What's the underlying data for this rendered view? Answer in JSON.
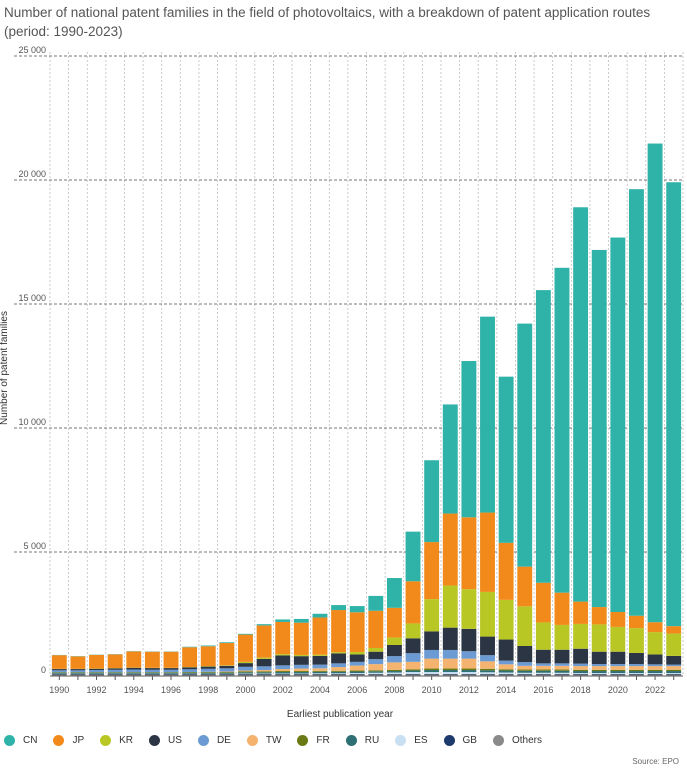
{
  "title_lines": [
    "Number of national patent families in the field of photovoltaics, with a breakdown of patent application routes",
    "(period: 1990-2023)"
  ],
  "source": "Source: EPO",
  "chart_data": {
    "type": "bar",
    "stacked": true,
    "title": "Number of national patent families in the field of photovoltaics, with a breakdown of patent application routes (period: 1990-2023)",
    "xlabel": "Earliest publication year",
    "ylabel": "Number of patent families",
    "ylim": [
      0,
      25000
    ],
    "yticks": [
      0,
      5000,
      10000,
      15000,
      20000,
      25000
    ],
    "ytick_labels": [
      "0",
      "5 000",
      "10 000",
      "15 000",
      "20 000",
      "25 000"
    ],
    "categories": [
      "1990",
      "1991",
      "1992",
      "1993",
      "1994",
      "1995",
      "1996",
      "1997",
      "1998",
      "1999",
      "2000",
      "2001",
      "2002",
      "2003",
      "2004",
      "2005",
      "2006",
      "2007",
      "2008",
      "2009",
      "2010",
      "2011",
      "2012",
      "2013",
      "2014",
      "2015",
      "2016",
      "2017",
      "2018",
      "2019",
      "2020",
      "2021",
      "2022",
      "2023"
    ],
    "xtick_labels": [
      "1990",
      "1992",
      "1994",
      "1996",
      "1998",
      "2000",
      "2002",
      "2004",
      "2006",
      "2008",
      "2010",
      "2012",
      "2014",
      "2016",
      "2018",
      "2020",
      "2022"
    ],
    "stack_order": [
      "Others",
      "GB",
      "ES",
      "RU",
      "FR",
      "TW",
      "DE",
      "US",
      "KR",
      "JP",
      "CN"
    ],
    "series": [
      {
        "name": "CN",
        "color": "#2fb3a8",
        "values": [
          10,
          10,
          10,
          10,
          10,
          10,
          10,
          20,
          30,
          30,
          30,
          50,
          100,
          150,
          150,
          200,
          250,
          600,
          1200,
          2000,
          3300,
          4400,
          6300,
          7900,
          6700,
          9800,
          11800,
          13100,
          15900,
          14400,
          15100,
          17200,
          19300,
          17900
        ]
      },
      {
        "name": "JP",
        "color": "#f28a1b",
        "values": [
          550,
          500,
          550,
          550,
          650,
          650,
          650,
          800,
          800,
          900,
          1100,
          1300,
          1300,
          1300,
          1500,
          1700,
          1600,
          1500,
          1200,
          1700,
          2300,
          2900,
          2900,
          3200,
          2300,
          1600,
          1600,
          1300,
          900,
          700,
          600,
          500,
          400,
          300
        ]
      },
      {
        "name": "KR",
        "color": "#b9c725",
        "values": [
          10,
          10,
          10,
          10,
          10,
          10,
          10,
          10,
          20,
          20,
          50,
          50,
          50,
          50,
          50,
          50,
          100,
          150,
          300,
          600,
          1300,
          1700,
          1600,
          1800,
          1600,
          1600,
          1100,
          1000,
          1000,
          1100,
          1000,
          1000,
          900,
          900
        ]
      },
      {
        "name": "US",
        "color": "#2b3544",
        "values": [
          50,
          50,
          50,
          60,
          70,
          70,
          70,
          80,
          90,
          100,
          150,
          300,
          400,
          350,
          350,
          400,
          300,
          300,
          450,
          600,
          750,
          900,
          900,
          750,
          850,
          650,
          550,
          550,
          600,
          500,
          500,
          450,
          400,
          350
        ]
      },
      {
        "name": "DE",
        "color": "#6b9bd2",
        "values": [
          80,
          80,
          90,
          100,
          110,
          100,
          100,
          110,
          120,
          130,
          150,
          150,
          150,
          150,
          150,
          150,
          150,
          200,
          250,
          350,
          350,
          350,
          300,
          250,
          150,
          150,
          100,
          100,
          100,
          80,
          80,
          80,
          70,
          60
        ]
      },
      {
        "name": "TW",
        "color": "#f4b36f",
        "values": [
          0,
          0,
          0,
          0,
          0,
          0,
          0,
          0,
          10,
          20,
          30,
          50,
          80,
          100,
          100,
          150,
          200,
          250,
          300,
          300,
          400,
          400,
          400,
          300,
          200,
          150,
          150,
          150,
          150,
          150,
          150,
          150,
          150,
          150
        ]
      },
      {
        "name": "FR",
        "color": "#6b7a14",
        "values": [
          30,
          30,
          30,
          30,
          30,
          30,
          30,
          30,
          30,
          30,
          40,
          40,
          40,
          40,
          40,
          40,
          40,
          40,
          50,
          50,
          60,
          60,
          60,
          60,
          50,
          50,
          50,
          50,
          50,
          50,
          50,
          50,
          50,
          50
        ]
      },
      {
        "name": "RU",
        "color": "#2e6f73",
        "values": [
          30,
          30,
          30,
          30,
          30,
          30,
          30,
          40,
          40,
          40,
          50,
          50,
          60,
          60,
          60,
          60,
          60,
          60,
          60,
          60,
          80,
          80,
          80,
          80,
          80,
          80,
          80,
          80,
          80,
          80,
          80,
          80,
          80,
          80
        ]
      },
      {
        "name": "ES",
        "color": "#c9dff2",
        "values": [
          10,
          10,
          10,
          10,
          10,
          10,
          10,
          10,
          10,
          10,
          20,
          20,
          20,
          20,
          30,
          30,
          40,
          50,
          60,
          80,
          80,
          80,
          80,
          70,
          60,
          50,
          50,
          50,
          40,
          40,
          40,
          40,
          40,
          40
        ]
      },
      {
        "name": "GB",
        "color": "#1c3a6b",
        "values": [
          20,
          20,
          20,
          20,
          20,
          20,
          20,
          20,
          20,
          20,
          20,
          20,
          20,
          20,
          20,
          20,
          20,
          20,
          20,
          20,
          20,
          20,
          20,
          20,
          20,
          20,
          20,
          20,
          20,
          20,
          20,
          20,
          20,
          20
        ]
      },
      {
        "name": "Others",
        "color": "#8a8a8a",
        "values": [
          60,
          60,
          60,
          60,
          60,
          60,
          60,
          60,
          60,
          60,
          60,
          60,
          60,
          60,
          60,
          60,
          60,
          60,
          60,
          60,
          60,
          60,
          60,
          60,
          60,
          60,
          60,
          60,
          60,
          60,
          60,
          60,
          60,
          60
        ]
      }
    ],
    "legend": [
      "CN",
      "JP",
      "KR",
      "US",
      "DE",
      "TW",
      "FR",
      "RU",
      "ES",
      "GB",
      "Others"
    ],
    "legend_position": "bottom-left",
    "grid": true
  }
}
